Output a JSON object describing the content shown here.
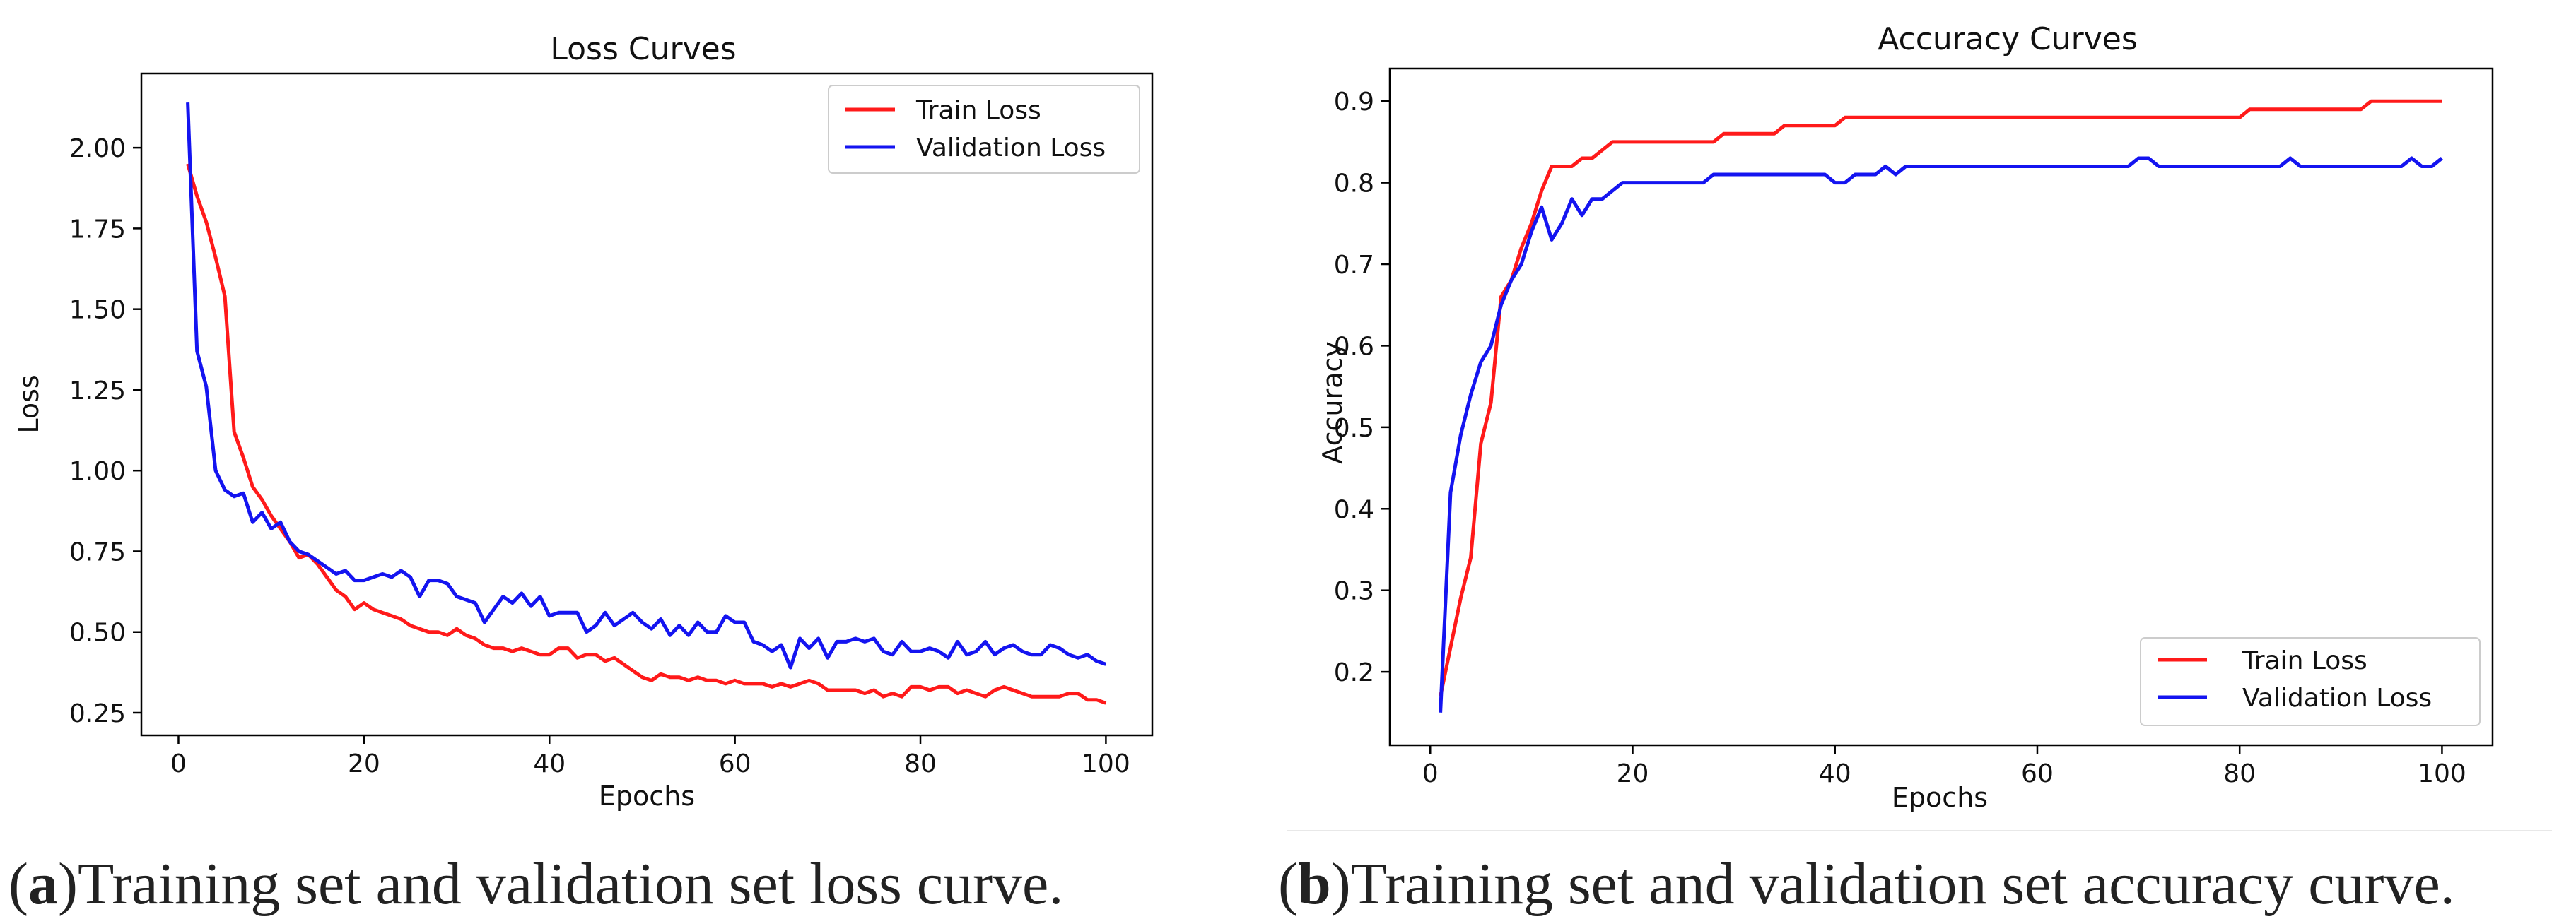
{
  "figure": {
    "panels": [
      {
        "letter": "a",
        "caption": "Training set and validation set loss curve."
      },
      {
        "letter": "b",
        "caption": "Training set and validation set accuracy curve."
      }
    ]
  },
  "colors": {
    "train": "#ff1a1a",
    "validation": "#1414f0",
    "axis": "#000000",
    "text": "#222222"
  },
  "chart_data": [
    {
      "type": "line",
      "title": "Loss Curves",
      "xlabel": "Epochs",
      "ylabel": "Loss",
      "xlim": [
        -4,
        105
      ],
      "ylim": [
        0.18,
        2.23
      ],
      "xticks": [
        0,
        20,
        40,
        60,
        80,
        100
      ],
      "yticks": [
        0.25,
        0.5,
        0.75,
        1.0,
        1.25,
        1.5,
        1.75,
        2.0
      ],
      "ytick_labels": [
        "0.25",
        "0.50",
        "0.75",
        "1.00",
        "1.25",
        "1.50",
        "1.75",
        "2.00"
      ],
      "grid": false,
      "legend_position": "top-right",
      "x_start": 1,
      "series": [
        {
          "name": "Train Loss",
          "color": "#ff1a1a",
          "values": [
            1.95,
            1.85,
            1.77,
            1.66,
            1.54,
            1.12,
            1.04,
            0.95,
            0.91,
            0.86,
            0.82,
            0.78,
            0.73,
            0.74,
            0.71,
            0.67,
            0.63,
            0.61,
            0.57,
            0.59,
            0.57,
            0.56,
            0.55,
            0.54,
            0.52,
            0.51,
            0.5,
            0.5,
            0.49,
            0.51,
            0.49,
            0.48,
            0.46,
            0.45,
            0.45,
            0.44,
            0.45,
            0.44,
            0.43,
            0.43,
            0.45,
            0.45,
            0.42,
            0.43,
            0.43,
            0.41,
            0.42,
            0.4,
            0.38,
            0.36,
            0.35,
            0.37,
            0.36,
            0.36,
            0.35,
            0.36,
            0.35,
            0.35,
            0.34,
            0.35,
            0.34,
            0.34,
            0.34,
            0.33,
            0.34,
            0.33,
            0.34,
            0.35,
            0.34,
            0.32,
            0.32,
            0.32,
            0.32,
            0.31,
            0.32,
            0.3,
            0.31,
            0.3,
            0.33,
            0.33,
            0.32,
            0.33,
            0.33,
            0.31,
            0.32,
            0.31,
            0.3,
            0.32,
            0.33,
            0.32,
            0.31,
            0.3,
            0.3,
            0.3,
            0.3,
            0.31,
            0.31,
            0.29,
            0.29,
            0.28
          ]
        },
        {
          "name": "Validation Loss",
          "color": "#1414f0",
          "values": [
            2.14,
            1.37,
            1.26,
            1.0,
            0.94,
            0.92,
            0.93,
            0.84,
            0.87,
            0.82,
            0.84,
            0.78,
            0.75,
            0.74,
            0.72,
            0.7,
            0.68,
            0.69,
            0.66,
            0.66,
            0.67,
            0.68,
            0.67,
            0.69,
            0.67,
            0.61,
            0.66,
            0.66,
            0.65,
            0.61,
            0.6,
            0.59,
            0.53,
            0.57,
            0.61,
            0.59,
            0.62,
            0.58,
            0.61,
            0.55,
            0.56,
            0.56,
            0.56,
            0.5,
            0.52,
            0.56,
            0.52,
            0.54,
            0.56,
            0.53,
            0.51,
            0.54,
            0.49,
            0.52,
            0.49,
            0.53,
            0.5,
            0.5,
            0.55,
            0.53,
            0.53,
            0.47,
            0.46,
            0.44,
            0.46,
            0.39,
            0.48,
            0.45,
            0.48,
            0.42,
            0.47,
            0.47,
            0.48,
            0.47,
            0.48,
            0.44,
            0.43,
            0.47,
            0.44,
            0.44,
            0.45,
            0.44,
            0.42,
            0.47,
            0.43,
            0.44,
            0.47,
            0.43,
            0.45,
            0.46,
            0.44,
            0.43,
            0.43,
            0.46,
            0.45,
            0.43,
            0.42,
            0.43,
            0.41,
            0.4
          ]
        }
      ]
    },
    {
      "type": "line",
      "title": "Accuracy Curves",
      "xlabel": "Epochs",
      "ylabel": "Accuracy",
      "xlim": [
        -4,
        105
      ],
      "ylim": [
        0.11,
        0.94
      ],
      "xticks": [
        0,
        20,
        40,
        60,
        80,
        100
      ],
      "yticks": [
        0.2,
        0.3,
        0.4,
        0.5,
        0.6,
        0.7,
        0.8,
        0.9
      ],
      "ytick_labels": [
        "0.2",
        "0.3",
        "0.4",
        "0.5",
        "0.6",
        "0.7",
        "0.8",
        "0.9"
      ],
      "grid": false,
      "legend_position": "bottom-right",
      "x_start": 1,
      "series": [
        {
          "name": "Train Loss",
          "color": "#ff1a1a",
          "values": [
            0.17,
            0.23,
            0.29,
            0.34,
            0.48,
            0.53,
            0.66,
            0.68,
            0.72,
            0.75,
            0.79,
            0.82,
            0.82,
            0.82,
            0.83,
            0.83,
            0.84,
            0.85,
            0.85,
            0.85,
            0.85,
            0.85,
            0.85,
            0.85,
            0.85,
            0.85,
            0.85,
            0.85,
            0.86,
            0.86,
            0.86,
            0.86,
            0.86,
            0.86,
            0.87,
            0.87,
            0.87,
            0.87,
            0.87,
            0.87,
            0.88,
            0.88,
            0.88,
            0.88,
            0.88,
            0.88,
            0.88,
            0.88,
            0.88,
            0.88,
            0.88,
            0.88,
            0.88,
            0.88,
            0.88,
            0.88,
            0.88,
            0.88,
            0.88,
            0.88,
            0.88,
            0.88,
            0.88,
            0.88,
            0.88,
            0.88,
            0.88,
            0.88,
            0.88,
            0.88,
            0.88,
            0.88,
            0.88,
            0.88,
            0.88,
            0.88,
            0.88,
            0.88,
            0.88,
            0.88,
            0.89,
            0.89,
            0.89,
            0.89,
            0.89,
            0.89,
            0.89,
            0.89,
            0.89,
            0.89,
            0.89,
            0.89,
            0.9,
            0.9,
            0.9,
            0.9,
            0.9,
            0.9,
            0.9,
            0.9
          ]
        },
        {
          "name": "Validation Loss",
          "color": "#1414f0",
          "values": [
            0.15,
            0.42,
            0.49,
            0.54,
            0.58,
            0.6,
            0.65,
            0.68,
            0.7,
            0.74,
            0.77,
            0.73,
            0.75,
            0.78,
            0.76,
            0.78,
            0.78,
            0.79,
            0.8,
            0.8,
            0.8,
            0.8,
            0.8,
            0.8,
            0.8,
            0.8,
            0.8,
            0.81,
            0.81,
            0.81,
            0.81,
            0.81,
            0.81,
            0.81,
            0.81,
            0.81,
            0.81,
            0.81,
            0.81,
            0.8,
            0.8,
            0.81,
            0.81,
            0.81,
            0.82,
            0.81,
            0.82,
            0.82,
            0.82,
            0.82,
            0.82,
            0.82,
            0.82,
            0.82,
            0.82,
            0.82,
            0.82,
            0.82,
            0.82,
            0.82,
            0.82,
            0.82,
            0.82,
            0.82,
            0.82,
            0.82,
            0.82,
            0.82,
            0.82,
            0.83,
            0.83,
            0.82,
            0.82,
            0.82,
            0.82,
            0.82,
            0.82,
            0.82,
            0.82,
            0.82,
            0.82,
            0.82,
            0.82,
            0.82,
            0.83,
            0.82,
            0.82,
            0.82,
            0.82,
            0.82,
            0.82,
            0.82,
            0.82,
            0.82,
            0.82,
            0.82,
            0.83,
            0.82,
            0.82,
            0.83
          ]
        }
      ]
    }
  ]
}
